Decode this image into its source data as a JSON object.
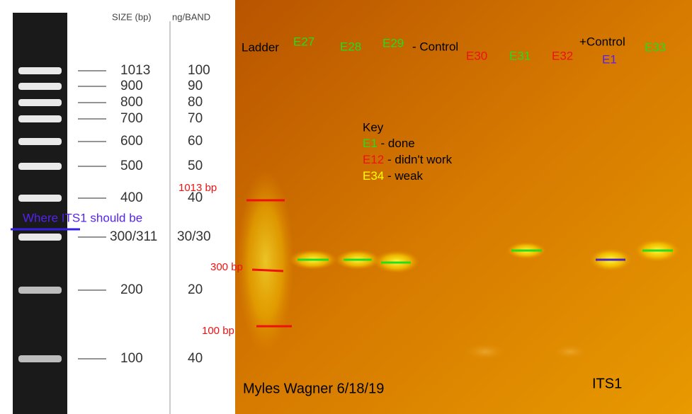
{
  "ladder": {
    "size_header": "SIZE (bp)",
    "ng_header": "ng/BAND",
    "rows": [
      [
        "1013",
        "100"
      ],
      [
        "900",
        "90"
      ],
      [
        "800",
        "80"
      ],
      [
        "700",
        "70"
      ],
      [
        "600",
        "60"
      ],
      [
        "500",
        "50"
      ],
      [
        "400",
        "40"
      ],
      [
        "300/311",
        "30/30"
      ],
      [
        "200",
        "20"
      ],
      [
        "100",
        "40"
      ]
    ],
    "its1_note": "Where ITS1 should be"
  },
  "gel": {
    "lanes": {
      "ladder": "Ladder",
      "e27": "E27",
      "e28": "E28",
      "e29": "E29",
      "neg_control": "- Control",
      "e30": "E30",
      "e31": "E31",
      "e32": "E32",
      "pos_control": "+Control",
      "e1": "E1",
      "e33": "E33"
    },
    "key": {
      "title": "Key",
      "done_id": "E1",
      "done": "- done",
      "fail_id": "E12",
      "fail": "- didn't work",
      "weak_id": "E34",
      "weak": "- weak"
    },
    "markers": [
      "1013 bp",
      "300 bp",
      "100 bp"
    ],
    "author": "Myles Wagner 6/18/19",
    "target": "ITS1"
  }
}
